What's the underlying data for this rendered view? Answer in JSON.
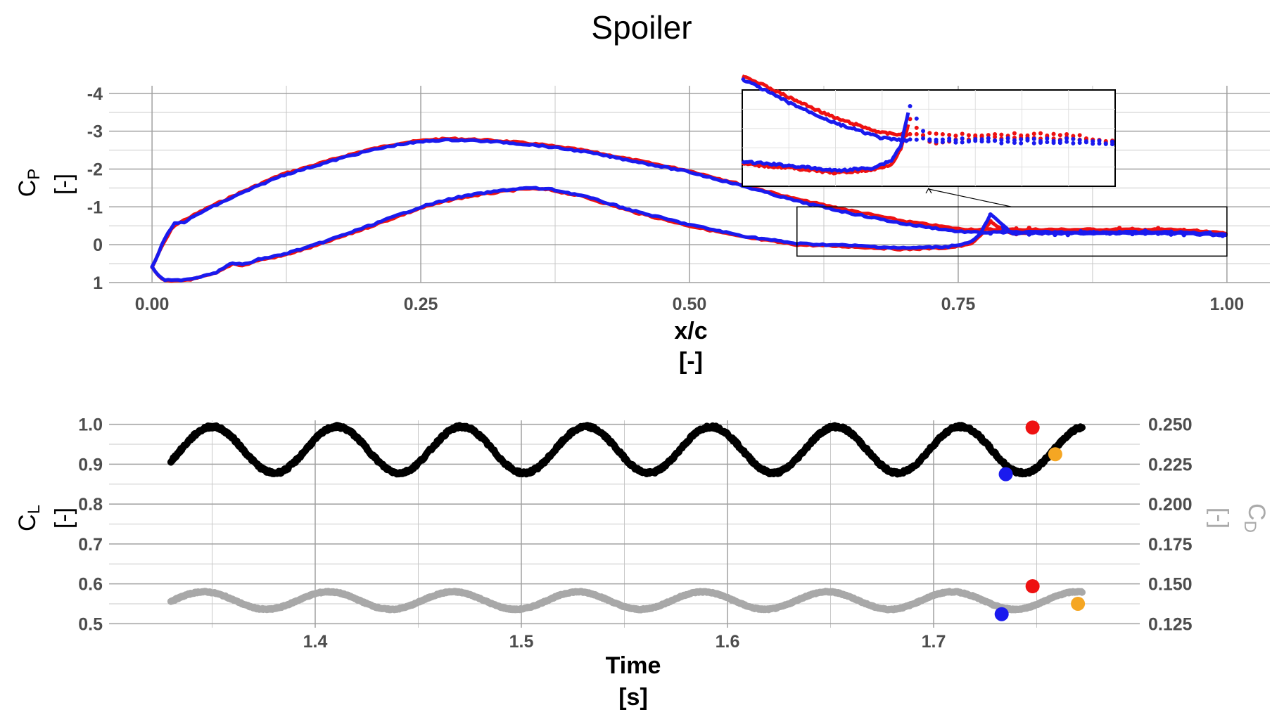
{
  "figure": {
    "title": "Spoiler"
  },
  "colors": {
    "red": "#ee1111",
    "blue": "#1a1aee",
    "black": "#000000",
    "gray": "#a8a8a8",
    "orange": "#f5a623",
    "grid": "#c8c8c8",
    "tick_text": "#4d4d4d"
  },
  "chart_data": [
    {
      "type": "scatter",
      "xlabel": "x/c",
      "xunit": "[-]",
      "ylabel_main": "C",
      "ylabel_sub": "P",
      "yunit": "[-]",
      "xlim": [
        -0.04,
        1.04
      ],
      "ylim": [
        1.0,
        -4.2
      ],
      "y_inverted": true,
      "xticks": [
        0,
        0.25,
        0.5,
        0.75,
        1.0
      ],
      "xtick_labels": [
        "0.00",
        "0.25",
        "0.50",
        "0.75",
        "1.00"
      ],
      "yticks": [
        -4,
        -3,
        -2,
        -1,
        0,
        1
      ],
      "ytick_labels": [
        "-4",
        "-3",
        "-2",
        "-1",
        "0",
        "1"
      ],
      "grid": true,
      "inset": {
        "x_range": [
          0.6,
          1.0
        ],
        "y_range": [
          -1.0,
          0.3
        ]
      },
      "series": [
        {
          "color": "red",
          "upper": {
            "x": [
              0.0,
              0.01,
              0.02,
              0.03,
              0.05,
              0.08,
              0.1,
              0.12,
              0.15,
              0.18,
              0.2,
              0.23,
              0.26,
              0.28,
              0.3,
              0.33,
              0.36,
              0.4,
              0.45,
              0.5,
              0.55,
              0.6,
              0.65,
              0.7,
              0.75,
              0.77,
              0.8,
              0.85,
              0.9,
              0.95,
              1.0
            ],
            "y": [
              0.6,
              0.0,
              -0.5,
              -0.65,
              -0.95,
              -1.35,
              -1.6,
              -1.85,
              -2.1,
              -2.35,
              -2.5,
              -2.68,
              -2.78,
              -2.8,
              -2.78,
              -2.73,
              -2.65,
              -2.5,
              -2.23,
              -1.95,
              -1.58,
              -1.2,
              -0.9,
              -0.62,
              -0.42,
              -0.4,
              -0.4,
              -0.4,
              -0.4,
              -0.4,
              -0.3
            ]
          },
          "lower": {
            "x": [
              0.0,
              0.01,
              0.02,
              0.04,
              0.06,
              0.075,
              0.085,
              0.1,
              0.12,
              0.15,
              0.2,
              0.25,
              0.28,
              0.3,
              0.33,
              0.35,
              0.37,
              0.4,
              0.45,
              0.5,
              0.55,
              0.6,
              0.65,
              0.7,
              0.74,
              0.76,
              0.77,
              0.78,
              0.8,
              0.85,
              0.9,
              0.95,
              1.0
            ],
            "y": [
              0.6,
              0.95,
              0.97,
              0.9,
              0.75,
              0.5,
              0.55,
              0.4,
              0.3,
              0.05,
              -0.45,
              -0.97,
              -1.2,
              -1.3,
              -1.42,
              -1.48,
              -1.45,
              -1.28,
              -0.85,
              -0.5,
              -0.2,
              0.0,
              0.05,
              0.12,
              0.08,
              0.0,
              -0.2,
              -0.6,
              -0.28,
              -0.35,
              -0.35,
              -0.35,
              -0.3
            ]
          }
        },
        {
          "color": "blue",
          "upper": {
            "x": [
              0.0,
              0.01,
              0.02,
              0.03,
              0.05,
              0.08,
              0.1,
              0.12,
              0.15,
              0.18,
              0.2,
              0.23,
              0.26,
              0.28,
              0.3,
              0.33,
              0.36,
              0.4,
              0.45,
              0.5,
              0.55,
              0.6,
              0.65,
              0.7,
              0.75,
              0.77,
              0.8,
              0.85,
              0.9,
              0.95,
              1.0
            ],
            "y": [
              0.6,
              -0.05,
              -0.55,
              -0.6,
              -0.92,
              -1.32,
              -1.57,
              -1.82,
              -2.07,
              -2.32,
              -2.47,
              -2.65,
              -2.75,
              -2.77,
              -2.75,
              -2.7,
              -2.62,
              -2.47,
              -2.2,
              -1.92,
              -1.55,
              -1.15,
              -0.83,
              -0.55,
              -0.35,
              -0.32,
              -0.33,
              -0.33,
              -0.33,
              -0.33,
              -0.28
            ]
          },
          "lower": {
            "x": [
              0.0,
              0.01,
              0.02,
              0.04,
              0.06,
              0.075,
              0.085,
              0.1,
              0.12,
              0.15,
              0.2,
              0.25,
              0.28,
              0.3,
              0.33,
              0.35,
              0.37,
              0.4,
              0.45,
              0.5,
              0.55,
              0.6,
              0.65,
              0.7,
              0.74,
              0.76,
              0.77,
              0.78,
              0.8,
              0.85,
              0.9,
              0.95,
              1.0
            ],
            "y": [
              0.6,
              0.93,
              0.95,
              0.88,
              0.72,
              0.48,
              0.53,
              0.38,
              0.27,
              0.02,
              -0.48,
              -1.0,
              -1.23,
              -1.33,
              -1.45,
              -1.5,
              -1.47,
              -1.3,
              -0.88,
              -0.53,
              -0.23,
              -0.03,
              0.02,
              0.09,
              0.05,
              -0.05,
              -0.25,
              -0.8,
              -0.3,
              -0.3,
              -0.3,
              -0.3,
              -0.25
            ]
          }
        }
      ]
    },
    {
      "type": "line",
      "xlabel": "Time",
      "xunit": "[s]",
      "ylabel_main": "C",
      "ylabel_sub": "L",
      "yunit": "[-]",
      "y2label_main": "C",
      "y2label_sub": "D",
      "y2unit": "[-]",
      "xlim": [
        1.3,
        1.8
      ],
      "ylim": [
        0.49,
        1.01
      ],
      "y2lim": [
        0.1225,
        0.2525
      ],
      "xticks": [
        1.4,
        1.5,
        1.6,
        1.7
      ],
      "xtick_labels": [
        "1.4",
        "1.5",
        "1.6",
        "1.7"
      ],
      "yticks": [
        0.5,
        0.6,
        0.7,
        0.8,
        0.9,
        1.0
      ],
      "ytick_labels": [
        "0.5",
        "0.6",
        "0.7",
        "0.8",
        "0.9",
        "1.0"
      ],
      "y2ticks": [
        0.125,
        0.15,
        0.175,
        0.2,
        0.225,
        0.25
      ],
      "y2tick_labels": [
        "0.125",
        "0.150",
        "0.175",
        "0.200",
        "0.225",
        "0.250"
      ],
      "grid": true,
      "cl_series": {
        "color": "black",
        "x_start": 1.33,
        "x_end": 1.772,
        "mean": 0.936,
        "amplitude": 0.058,
        "period": 0.0605,
        "phase_peak_at": 1.35
      },
      "cd_series": {
        "color": "gray",
        "x_start": 1.33,
        "x_end": 1.772,
        "mean": 0.1395,
        "amplitude": 0.0055,
        "period": 0.0605,
        "phase_peak_at": 1.346
      },
      "markers_cl": [
        {
          "x": 1.735,
          "y": 0.875,
          "color": "blue"
        },
        {
          "x": 1.748,
          "y": 0.992,
          "color": "red"
        },
        {
          "x": 1.759,
          "y": 0.925,
          "color": "orange"
        }
      ],
      "markers_cd": [
        {
          "x": 1.733,
          "y": 0.131,
          "color": "blue"
        },
        {
          "x": 1.748,
          "y": 0.1485,
          "color": "red"
        },
        {
          "x": 1.77,
          "y": 0.1375,
          "color": "orange"
        }
      ]
    }
  ]
}
